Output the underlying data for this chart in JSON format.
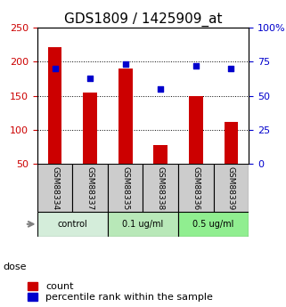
{
  "title": "GDS1809 / 1425909_at",
  "samples": [
    "GSM88334",
    "GSM88337",
    "GSM88335",
    "GSM88338",
    "GSM88336",
    "GSM88339"
  ],
  "counts": [
    222,
    155,
    190,
    78,
    150,
    112
  ],
  "percentiles": [
    70,
    63,
    73,
    55,
    72,
    70
  ],
  "groups": [
    {
      "label": "control",
      "color": "#d4edda",
      "samples": [
        0,
        1
      ]
    },
    {
      "label": "0.1 ug/ml",
      "color": "#b8e8b8",
      "samples": [
        2,
        3
      ]
    },
    {
      "label": "0.5 ug/ml",
      "color": "#90ee90",
      "samples": [
        4,
        5
      ]
    }
  ],
  "ylim_left": [
    50,
    250
  ],
  "ylim_right": [
    0,
    100
  ],
  "yticks_left": [
    50,
    100,
    150,
    200,
    250
  ],
  "yticks_right": [
    0,
    25,
    50,
    75,
    100
  ],
  "ytick_labels_right": [
    "0",
    "25",
    "50",
    "75",
    "100%"
  ],
  "bar_color": "#cc0000",
  "dot_color": "#0000cc",
  "bar_bottom": 50,
  "dose_label": "dose",
  "legend_count_label": "count",
  "legend_percentile_label": "percentile rank within the sample",
  "grid_color": "black",
  "sample_box_color": "#cccccc",
  "title_fontsize": 11,
  "tick_fontsize": 8,
  "legend_fontsize": 8
}
